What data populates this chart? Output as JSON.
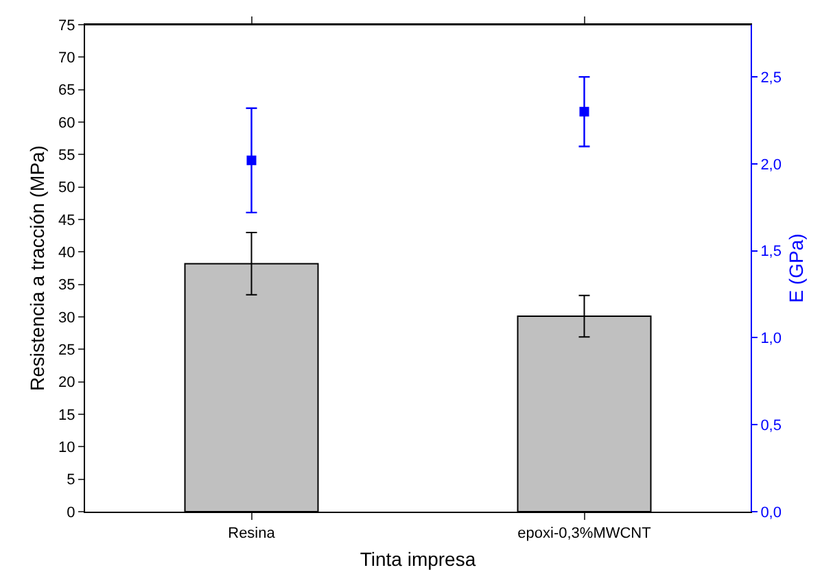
{
  "chart_data": {
    "type": "bar",
    "xlabel": "Tinta impresa",
    "ylabel": "Resistencia a tracción (MPa)",
    "y2label": "E (GPa)",
    "categories": [
      "Resina",
      "epoxi-0,3%MWCNT"
    ],
    "series": [
      {
        "color": "#c0c0c0",
        "values": [
          38.2,
          30.1
        ],
        "errors": [
          4.8,
          3.2
        ]
      },
      {
        "type": "scatter",
        "axis": "y2",
        "color": "#0000ff",
        "marker": "square",
        "values": [
          2.02,
          2.3
        ],
        "errors": [
          0.3,
          0.2
        ]
      }
    ],
    "ylim": [
      0,
      75
    ],
    "yticks": [
      0,
      5,
      10,
      15,
      20,
      25,
      30,
      35,
      40,
      45,
      50,
      55,
      60,
      65,
      70,
      75
    ],
    "y2lim": [
      0,
      2.8
    ],
    "y2ticks": [
      {
        "value": 0,
        "label": "0,0"
      },
      {
        "value": 0.5,
        "label": "0,5"
      },
      {
        "value": 1,
        "label": "1,0"
      },
      {
        "value": 1.5,
        "label": "1,5"
      },
      {
        "value": 2,
        "label": "2,0"
      },
      {
        "value": 2.5,
        "label": "2,5"
      }
    ]
  }
}
